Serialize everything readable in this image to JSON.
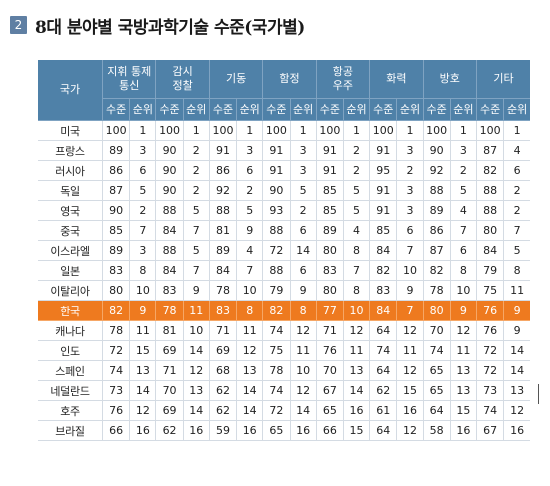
{
  "title_number": "2",
  "title": "8대 분야별 국방과학기술 수준(국가별)",
  "table": {
    "country_header": "국가",
    "groups": [
      {
        "line1": "지휘 통제",
        "line2": "통신"
      },
      {
        "line1": "감시",
        "line2": "정찰"
      },
      {
        "line1": "기동",
        "line2": ""
      },
      {
        "line1": "함정",
        "line2": ""
      },
      {
        "line1": "항공",
        "line2": "우주"
      },
      {
        "line1": "화력",
        "line2": ""
      },
      {
        "line1": "방호",
        "line2": ""
      },
      {
        "line1": "기타",
        "line2": ""
      }
    ],
    "sub_level": "수준",
    "sub_rank": "순위",
    "highlight_color": "#ee7a1f",
    "header_color": "#4f81a8",
    "rows": [
      {
        "country": "미국",
        "values": [
          "100",
          "1",
          "100",
          "1",
          "100",
          "1",
          "100",
          "1",
          "100",
          "1",
          "100",
          "1",
          "100",
          "1",
          "100",
          "1"
        ]
      },
      {
        "country": "프랑스",
        "values": [
          "89",
          "3",
          "90",
          "2",
          "91",
          "3",
          "91",
          "3",
          "91",
          "2",
          "91",
          "3",
          "90",
          "3",
          "87",
          "4"
        ]
      },
      {
        "country": "러시아",
        "values": [
          "86",
          "6",
          "90",
          "2",
          "86",
          "6",
          "91",
          "3",
          "91",
          "2",
          "95",
          "2",
          "92",
          "2",
          "82",
          "6"
        ]
      },
      {
        "country": "독일",
        "values": [
          "87",
          "5",
          "90",
          "2",
          "92",
          "2",
          "90",
          "5",
          "85",
          "5",
          "91",
          "3",
          "88",
          "5",
          "88",
          "2"
        ]
      },
      {
        "country": "영국",
        "values": [
          "90",
          "2",
          "88",
          "5",
          "88",
          "5",
          "93",
          "2",
          "85",
          "5",
          "91",
          "3",
          "89",
          "4",
          "88",
          "2"
        ]
      },
      {
        "country": "중국",
        "values": [
          "85",
          "7",
          "84",
          "7",
          "81",
          "9",
          "88",
          "6",
          "89",
          "4",
          "85",
          "6",
          "86",
          "7",
          "80",
          "7"
        ]
      },
      {
        "country": "이스라엘",
        "values": [
          "89",
          "3",
          "88",
          "5",
          "89",
          "4",
          "72",
          "14",
          "80",
          "8",
          "84",
          "7",
          "87",
          "6",
          "84",
          "5"
        ]
      },
      {
        "country": "일본",
        "values": [
          "83",
          "8",
          "84",
          "7",
          "84",
          "7",
          "88",
          "6",
          "83",
          "7",
          "82",
          "10",
          "82",
          "8",
          "79",
          "8"
        ]
      },
      {
        "country": "이탈리아",
        "values": [
          "80",
          "10",
          "83",
          "9",
          "78",
          "10",
          "79",
          "9",
          "80",
          "8",
          "83",
          "9",
          "78",
          "10",
          "75",
          "11"
        ]
      },
      {
        "country": "한국",
        "values": [
          "82",
          "9",
          "78",
          "11",
          "83",
          "8",
          "82",
          "8",
          "77",
          "10",
          "84",
          "7",
          "80",
          "9",
          "76",
          "9"
        ],
        "highlight": true
      },
      {
        "country": "캐나다",
        "values": [
          "78",
          "11",
          "81",
          "10",
          "71",
          "11",
          "74",
          "12",
          "71",
          "12",
          "64",
          "12",
          "70",
          "12",
          "76",
          "9"
        ]
      },
      {
        "country": "인도",
        "values": [
          "72",
          "15",
          "69",
          "14",
          "69",
          "12",
          "75",
          "11",
          "76",
          "11",
          "74",
          "11",
          "74",
          "11",
          "72",
          "14"
        ]
      },
      {
        "country": "스페인",
        "values": [
          "74",
          "13",
          "71",
          "12",
          "68",
          "13",
          "78",
          "10",
          "70",
          "13",
          "64",
          "12",
          "65",
          "13",
          "72",
          "14"
        ]
      },
      {
        "country": "네덜란드",
        "values": [
          "73",
          "14",
          "70",
          "13",
          "62",
          "14",
          "74",
          "12",
          "67",
          "14",
          "62",
          "15",
          "65",
          "13",
          "73",
          "13"
        ]
      },
      {
        "country": "호주",
        "values": [
          "76",
          "12",
          "69",
          "14",
          "62",
          "14",
          "72",
          "14",
          "65",
          "16",
          "61",
          "16",
          "64",
          "15",
          "74",
          "12"
        ]
      },
      {
        "country": "브라질",
        "values": [
          "66",
          "16",
          "62",
          "16",
          "59",
          "16",
          "65",
          "16",
          "66",
          "15",
          "64",
          "12",
          "58",
          "16",
          "67",
          "16"
        ]
      }
    ]
  }
}
